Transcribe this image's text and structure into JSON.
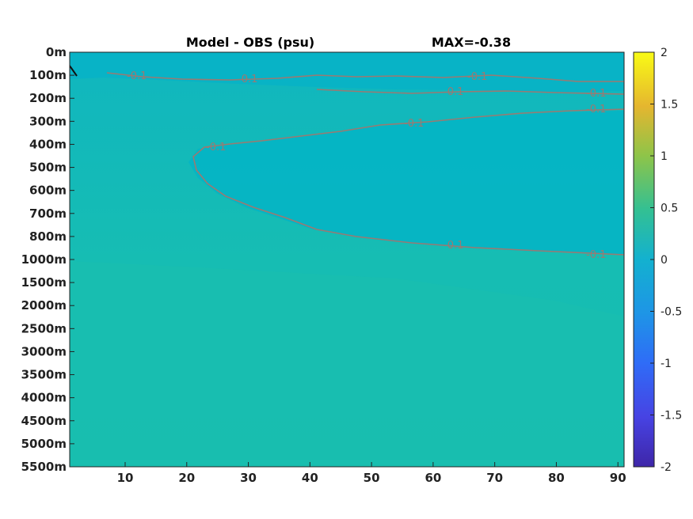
{
  "chart_data": {
    "type": "heatmap",
    "title": "Model - OBS (psu)",
    "subtitle": "MAX=-0.38",
    "xlabel": "",
    "ylabel": "",
    "x_ticks": [
      10,
      20,
      30,
      40,
      50,
      60,
      70,
      80,
      90
    ],
    "xlim": [
      1,
      91
    ],
    "y_tick_labels": [
      "0m",
      "100m",
      "200m",
      "300m",
      "400m",
      "500m",
      "600m",
      "700m",
      "800m",
      "1000m",
      "1500m",
      "2000m",
      "2500m",
      "3000m",
      "3500m",
      "4000m",
      "4500m",
      "5000m",
      "5500m"
    ],
    "y_axis_reversed": true,
    "colorbar": {
      "min": -2,
      "max": 2,
      "ticks": [
        "2",
        "1.5",
        "1",
        "0.5",
        "0",
        "-0.5",
        "-1",
        "-1.5",
        "-2"
      ],
      "colormap": "parula"
    },
    "contour_label": "-0.1",
    "colors": {
      "field_background": "#15bcb4",
      "negative_band": "#00b4c6",
      "contour": "#9a7a72",
      "dark_contour": "#111111"
    }
  }
}
